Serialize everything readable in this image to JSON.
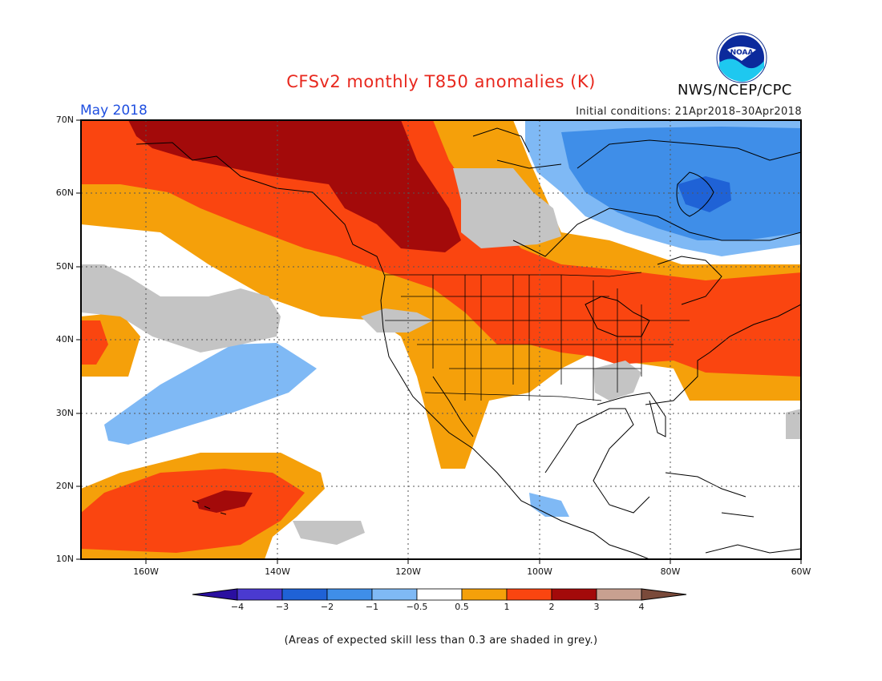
{
  "title": "CFSv2 monthly T850 anomalies (K)",
  "month": "May 2018",
  "initial_conditions": "Initial conditions: 21Apr2018–30Apr2018",
  "agency": "NWS/NCEP/CPC",
  "logo_text": "NOAA",
  "lat_labels": [
    "70N",
    "60N",
    "50N",
    "40N",
    "30N",
    "20N",
    "10N"
  ],
  "lon_labels": [
    "160W",
    "140W",
    "120W",
    "100W",
    "80W",
    "60W"
  ],
  "colorbar": {
    "ticks": [
      "−4",
      "−3",
      "−2",
      "−1",
      "−0.5",
      "0.5",
      "1",
      "2",
      "3",
      "4"
    ],
    "colors": [
      "#2a0fa0",
      "#4a3ad0",
      "#1f62d6",
      "#3f8ee8",
      "#7fb9f5",
      "#ffffff",
      "#f5a00a",
      "#fa4510",
      "#a30a0a",
      "#c8a090",
      "#7a4a3a"
    ]
  },
  "footnote": "(Areas of expected skill less than 0.3 are shaded in grey.)"
}
